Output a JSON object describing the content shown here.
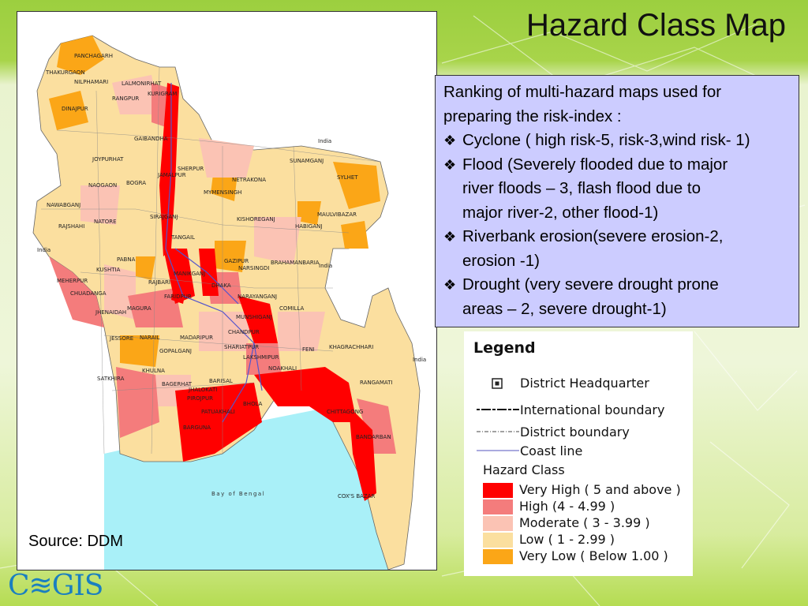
{
  "slide": {
    "title": "Hazard Class Map",
    "source": "Source: DDM",
    "logo_text": "C≋GIS"
  },
  "info_box": {
    "intro_line1": "Ranking of multi-hazard maps used for",
    "intro_line2": "preparing the risk-index :",
    "bullet_glyph": "❖",
    "items": [
      {
        "lines": [
          "Cyclone ( high risk-5, risk-3,wind risk- 1)"
        ]
      },
      {
        "lines": [
          "Flood (Severely flooded due to major",
          "river floods – 3, flash flood due to",
          "major river-2, other flood-1)"
        ]
      },
      {
        "lines": [
          "Riverbank erosion(severe erosion-2,",
          "erosion -1)"
        ]
      },
      {
        "lines": [
          "Drought (very severe drought prone",
          "areas – 2, severe drought-1)"
        ]
      }
    ]
  },
  "legend": {
    "title": "Legend",
    "district_hq": "District Headquarter",
    "intl_boundary": "International boundary",
    "district_boundary": "District boundary",
    "coast_line": "Coast  line",
    "hazard_class_title": "Hazard Class",
    "classes": [
      {
        "label": "Very High ( 5  and above )",
        "color": "#ff0000"
      },
      {
        "label": "High (4 - 4.99 )",
        "color": "#f47c7c"
      },
      {
        "label": "Moderate ( 3 - 3.99 )",
        "color": "#fbc3b4"
      },
      {
        "label": "Low ( 1 - 2.99 )",
        "color": "#fbdf9f"
      },
      {
        "label": "Very Low ( Below 1.00 )",
        "color": "#fba617"
      }
    ]
  },
  "map": {
    "labels": {
      "panchagarh": "PANCHAGARH",
      "thakurgaon": "THAKURGAON",
      "nilphamari": "NILPHAMARI",
      "lalmonirhat": "LALMONIRHAT",
      "rangpur": "RANGPUR",
      "kurigram": "KURIGRAM",
      "dinajpur": "DINAJPUR",
      "gaibandha": "GAIBANDHA",
      "joypurhat": "JOYPURHAT",
      "naogaon": "NAOGAON",
      "bogra": "BOGRA",
      "jamalpur": "JAMALPUR",
      "sherpur": "SHERPUR",
      "sunamganj": "SUNAMGANJ",
      "sylhet": "SYLHET",
      "netrakona": "NETRAKONA",
      "mymensingh": "MYMENSINGH",
      "nawabganj": "NAWABGANJ",
      "natore": "NATORE",
      "rajshahi": "RAJSHAHI",
      "sirajganj": "SIRAJGANJ",
      "kishoreganj": "KISHOREGANJ",
      "maulvibazar": "MAULVIBAZAR",
      "habiganj": "HABIGANJ",
      "tangail": "TANGAIL",
      "pabna": "PABNA",
      "kushtia": "KUSHTIA",
      "gazipur": "GAZIPUR",
      "narsingdi": "NARSINGDI",
      "brahamanbaria": "BRAHAMANBARIA",
      "meherpur": "MEHERPUR",
      "chuadanga": "CHUADANGA",
      "rajbari": "RAJBARI",
      "manikganj": "MANIKGANJ",
      "dhaka": "DHAKA",
      "faridpur": "FARIDPUR",
      "narayanganj": "NARAYANGANJ",
      "jhenaidah": "JHENAIDAH",
      "magura": "MAGURA",
      "munshiganj": "MUNSHIGANJ",
      "comilla": "COMILLA",
      "jessore": "JESSORE",
      "narail": "NARAIL",
      "madaripur": "MADARIPUR",
      "chandpur": "CHANDPUR",
      "gopalganj": "GOPALGANJ",
      "shariatpur": "SHARIATPUR",
      "feni": "FENI",
      "lakshmipur": "LAKSHMIPUR",
      "khagrachhari": "KHAGRACHHARI",
      "khulna": "KHULNA",
      "noakhali": "NOAKHALI",
      "satkhira": "SATKHIRA",
      "bagerhat": "BAGERHAT",
      "barisal": "BARISAL",
      "rangamati": "RANGAMATI",
      "jhalokati": "JHALOKATI",
      "pirojpur": "PIROJPUR",
      "patuakhali": "PATUAKHALI",
      "chittagong": "CHITTAGONG",
      "bhola": "BHOLA",
      "bandarban": "BANDARBAN",
      "barguna": "BARGUNA",
      "coxs_bazar": "COX'S BAZAR",
      "bay_of_bengal": "Bay of Bengal",
      "india": "India"
    }
  }
}
